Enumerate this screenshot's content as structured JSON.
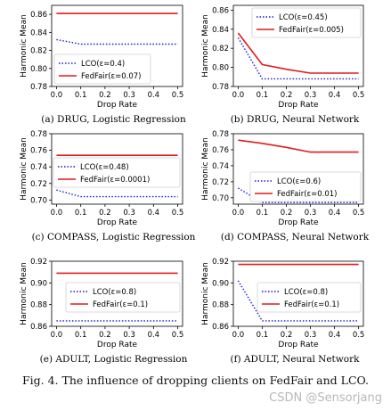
{
  "figure_caption": "Fig. 4.  The influence of dropping clients on FedFair and LCO.",
  "watermark": "CSDN @Sensorjang",
  "colors": {
    "lco": "#1a1ad6",
    "fedfair": "#e11c1c",
    "axis": "#000000"
  },
  "chart_data": [
    {
      "type": "line",
      "caption": "(a) DRUG, Logistic Regression",
      "xlabel": "Drop Rate",
      "ylabel": "Harmonic Mean",
      "x": [
        0.0,
        0.1,
        0.2,
        0.3,
        0.4,
        0.5
      ],
      "xticks": [
        "0.0",
        "0.1",
        "0.2",
        "0.3",
        "0.4",
        "0.5"
      ],
      "xlim": [
        -0.02,
        0.52
      ],
      "ylim": [
        0.78,
        0.87
      ],
      "yticks": [
        0.78,
        0.8,
        0.82,
        0.84,
        0.86
      ],
      "yticklabels": [
        "0.78",
        "0.80",
        "0.82",
        "0.84",
        "0.86"
      ],
      "legend": "bottom-left",
      "series": [
        {
          "name": "LCO(ε=0.4)",
          "style": "dotted",
          "values": [
            0.832,
            0.827,
            0.827,
            0.827,
            0.827,
            0.827
          ]
        },
        {
          "name": "FedFair(ε=0.07)",
          "style": "solid",
          "values": [
            0.861,
            0.861,
            0.861,
            0.861,
            0.861,
            0.861
          ]
        }
      ]
    },
    {
      "type": "line",
      "caption": "(b) DRUG, Neural Network",
      "xlabel": "Drop Rate",
      "ylabel": "Harmonic Mean",
      "x": [
        0.0,
        0.1,
        0.2,
        0.3,
        0.4,
        0.5
      ],
      "xticks": [
        "0.0",
        "0.1",
        "0.2",
        "0.3",
        "0.4",
        "0.5"
      ],
      "xlim": [
        -0.02,
        0.52
      ],
      "ylim": [
        0.78,
        0.865
      ],
      "yticks": [
        0.78,
        0.8,
        0.82,
        0.84,
        0.86
      ],
      "yticklabels": [
        "0.78",
        "0.80",
        "0.82",
        "0.84",
        "0.86"
      ],
      "legend": "top-right",
      "series": [
        {
          "name": "LCO(ε=0.45)",
          "style": "dotted",
          "values": [
            0.831,
            0.788,
            0.788,
            0.788,
            0.788,
            0.788
          ]
        },
        {
          "name": "FedFair(ε=0.005)",
          "style": "solid",
          "values": [
            0.836,
            0.803,
            0.798,
            0.794,
            0.794,
            0.794
          ]
        }
      ]
    },
    {
      "type": "line",
      "caption": "(c) COMPASS, Logistic Regression",
      "xlabel": "Drop Rate",
      "ylabel": "Harmonic Mean",
      "x": [
        0.0,
        0.1,
        0.2,
        0.3,
        0.4,
        0.5
      ],
      "xticks": [
        "0.0",
        "0.1",
        "0.2",
        "0.3",
        "0.4",
        "0.5"
      ],
      "xlim": [
        -0.02,
        0.52
      ],
      "ylim": [
        0.695,
        0.78
      ],
      "yticks": [
        0.7,
        0.72,
        0.74,
        0.76,
        0.78
      ],
      "yticklabels": [
        "0.70",
        "0.72",
        "0.74",
        "0.76",
        "0.78"
      ],
      "legend": "center-right",
      "series": [
        {
          "name": "LCO(ε=0.48)",
          "style": "dotted",
          "values": [
            0.712,
            0.704,
            0.704,
            0.704,
            0.704,
            0.704
          ]
        },
        {
          "name": "FedFair(ε=0.0001)",
          "style": "solid",
          "values": [
            0.754,
            0.754,
            0.754,
            0.754,
            0.754,
            0.754
          ]
        }
      ]
    },
    {
      "type": "line",
      "caption": "(d) COMPASS, Neural Network",
      "xlabel": "Drop Rate",
      "ylabel": "Harmonic Mean",
      "x": [
        0.0,
        0.1,
        0.2,
        0.3,
        0.4,
        0.5
      ],
      "xticks": [
        "0.0",
        "0.1",
        "0.2",
        "0.3",
        "0.4",
        "0.5"
      ],
      "xlim": [
        -0.02,
        0.52
      ],
      "ylim": [
        0.692,
        0.78
      ],
      "yticks": [
        0.7,
        0.72,
        0.74,
        0.76,
        0.78
      ],
      "yticklabels": [
        "0.70",
        "0.72",
        "0.74",
        "0.76",
        "0.78"
      ],
      "legend": "bottom-right",
      "series": [
        {
          "name": "LCO(ε=0.6)",
          "style": "dotted",
          "values": [
            0.712,
            0.694,
            0.694,
            0.694,
            0.694,
            0.694
          ]
        },
        {
          "name": "FedFair(ε=0.01)",
          "style": "solid",
          "values": [
            0.772,
            0.768,
            0.763,
            0.757,
            0.757,
            0.757
          ]
        }
      ]
    },
    {
      "type": "line",
      "caption": "(e) ADULT, Logistic Regression",
      "xlabel": "Drop Rate",
      "ylabel": "Harmonic Mean",
      "x": [
        0.0,
        0.1,
        0.2,
        0.3,
        0.4,
        0.5
      ],
      "xticks": [
        "0.0",
        "0.1",
        "0.2",
        "0.3",
        "0.4",
        "0.5"
      ],
      "xlim": [
        -0.02,
        0.52
      ],
      "ylim": [
        0.86,
        0.92
      ],
      "yticks": [
        0.86,
        0.88,
        0.9,
        0.92
      ],
      "yticklabels": [
        "0.86",
        "0.88",
        "0.90",
        "0.92"
      ],
      "legend": "center-right",
      "series": [
        {
          "name": "LCO(ε=0.8)",
          "style": "dotted",
          "values": [
            0.865,
            0.865,
            0.865,
            0.865,
            0.865,
            0.865
          ]
        },
        {
          "name": "FedFair(ε=0.1)",
          "style": "solid",
          "values": [
            0.909,
            0.909,
            0.909,
            0.909,
            0.909,
            0.909
          ]
        }
      ]
    },
    {
      "type": "line",
      "caption": "(f) ADULT, Neural Network",
      "xlabel": "Drop Rate",
      "ylabel": "Harmonic Mean",
      "x": [
        0.0,
        0.1,
        0.2,
        0.3,
        0.4,
        0.5
      ],
      "xticks": [
        "0.0",
        "0.1",
        "0.2",
        "0.3",
        "0.4",
        "0.5"
      ],
      "xlim": [
        -0.02,
        0.52
      ],
      "ylim": [
        0.86,
        0.92
      ],
      "yticks": [
        0.86,
        0.88,
        0.9,
        0.92
      ],
      "yticklabels": [
        "0.86",
        "0.88",
        "0.90",
        "0.92"
      ],
      "legend": "center-right",
      "series": [
        {
          "name": "LCO(ε=0.8)",
          "style": "dotted",
          "values": [
            0.902,
            0.865,
            0.865,
            0.865,
            0.865,
            0.865
          ]
        },
        {
          "name": "FedFair(ε=0.1)",
          "style": "solid",
          "values": [
            0.917,
            0.917,
            0.917,
            0.917,
            0.917,
            0.917
          ]
        }
      ]
    }
  ]
}
